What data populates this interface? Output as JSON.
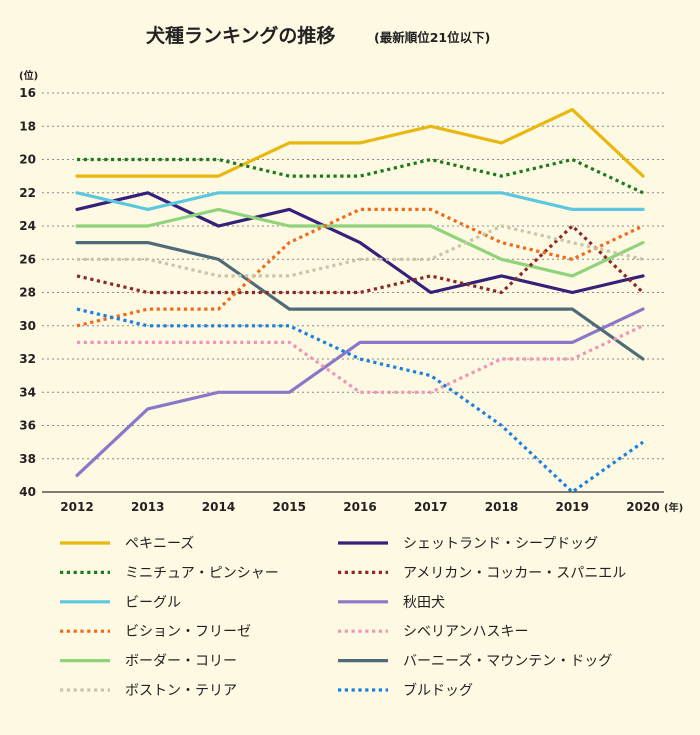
{
  "chart_data": {
    "type": "line",
    "title": "犬種ランキングの推移",
    "subtitle": "(最新順位21位以下)",
    "ylabel": "(位)",
    "xlabel_unit": "(年)",
    "x": [
      2012,
      2013,
      2014,
      2015,
      2016,
      2017,
      2018,
      2019,
      2020
    ],
    "ylim": [
      16,
      40
    ],
    "y_inverted": true,
    "yticks": [
      16,
      18,
      20,
      22,
      24,
      26,
      28,
      30,
      32,
      34,
      36,
      38,
      40
    ],
    "grid": true,
    "legend_position": "bottom",
    "series": [
      {
        "name": "ペキニーズ",
        "color": "#e8b80f",
        "style": "solid",
        "values": [
          21,
          21,
          21,
          19,
          19,
          18,
          19,
          17,
          21
        ]
      },
      {
        "name": "シェットランド・シープドッグ",
        "color": "#35207a",
        "style": "solid",
        "values": [
          23,
          22,
          24,
          23,
          25,
          28,
          27,
          28,
          27
        ]
      },
      {
        "name": "ミニチュア・ピンシャー",
        "color": "#1c7a1c",
        "style": "dotted",
        "values": [
          20,
          20,
          20,
          21,
          21,
          20,
          21,
          20,
          22
        ]
      },
      {
        "name": "アメリカン・コッカー・スパニエル",
        "color": "#8b2a24",
        "style": "dotted",
        "values": [
          27,
          28,
          28,
          28,
          28,
          27,
          28,
          24,
          28
        ]
      },
      {
        "name": "ビーグル",
        "color": "#5bc8e0",
        "style": "solid",
        "values": [
          22,
          23,
          22,
          22,
          22,
          22,
          22,
          23,
          23
        ]
      },
      {
        "name": "秋田犬",
        "color": "#8878c8",
        "style": "solid",
        "values": [
          39,
          35,
          34,
          34,
          31,
          31,
          31,
          31,
          29
        ]
      },
      {
        "name": "ビション・フリーゼ",
        "color": "#f06a1a",
        "style": "dotted",
        "values": [
          30,
          29,
          29,
          25,
          23,
          23,
          25,
          26,
          24
        ]
      },
      {
        "name": "シベリアンハスキー",
        "color": "#f095b5",
        "style": "dotted",
        "values": [
          31,
          31,
          31,
          31,
          34,
          34,
          32,
          32,
          30
        ]
      },
      {
        "name": "ボーダー・コリー",
        "color": "#8fd47a",
        "style": "solid",
        "values": [
          24,
          24,
          23,
          24,
          24,
          24,
          26,
          27,
          25
        ]
      },
      {
        "name": "バーニーズ・マウンテン・ドッグ",
        "color": "#4f6b78",
        "style": "solid",
        "values": [
          25,
          25,
          26,
          29,
          29,
          29,
          29,
          29,
          32
        ]
      },
      {
        "name": "ボストン・テリア",
        "color": "#c8c6aa",
        "style": "dotted",
        "values": [
          26,
          26,
          27,
          27,
          26,
          26,
          24,
          25,
          26
        ]
      },
      {
        "name": "ブルドッグ",
        "color": "#1a80e0",
        "style": "dotted",
        "values": [
          29,
          30,
          30,
          30,
          32,
          33,
          36,
          40,
          37
        ]
      }
    ]
  }
}
